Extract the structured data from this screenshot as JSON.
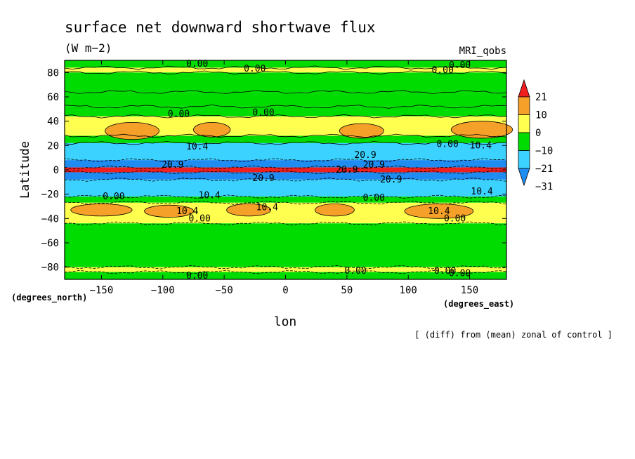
{
  "chart_data": {
    "type": "heatmap",
    "title": "surface net downward shortwave flux",
    "units": "(W m−2)",
    "model": "MRI_qobs",
    "xlabel": "lon",
    "ylabel": "Latitude",
    "x_unit_label": "(degrees_east)",
    "y_unit_label": "(degrees_north)",
    "note": "[ (diff) from (mean) zonal of control ]",
    "xlim": [
      -180,
      180
    ],
    "ylim": [
      -90,
      90
    ],
    "x_ticks": [
      -150,
      -100,
      -50,
      0,
      50,
      100,
      150
    ],
    "x_tick_labels": [
      "−150",
      "−100",
      "−50",
      "0",
      "50",
      "100",
      "150"
    ],
    "y_ticks": [
      80,
      60,
      40,
      20,
      0,
      -20,
      -40,
      -60,
      -80
    ],
    "y_tick_labels": [
      "80",
      "60",
      "40",
      "20",
      "0",
      "−20",
      "−40",
      "−60",
      "−80"
    ],
    "colorbar": {
      "colors": [
        "#1e8cf0",
        "#3cd2ff",
        "#00dc00",
        "#ffff50",
        "#f5a028",
        "#f01e1e"
      ],
      "labels": [
        "21",
        "10",
        "0",
        "−10",
        "−21",
        "−31"
      ]
    },
    "latitude_bands": [
      {
        "lat_from": 90,
        "lat_to": 84,
        "level": 2
      },
      {
        "lat_from": 84,
        "lat_to": 80,
        "level": 3
      },
      {
        "lat_from": 80,
        "lat_to": 64,
        "level": 2
      },
      {
        "lat_from": 64,
        "lat_to": 52,
        "level": 2
      },
      {
        "lat_from": 52,
        "lat_to": 44,
        "level": 2
      },
      {
        "lat_from": 44,
        "lat_to": 28,
        "level": 3
      },
      {
        "lat_from": 28,
        "lat_to": 22,
        "level": 2
      },
      {
        "lat_from": 22,
        "lat_to": 8,
        "level": 1
      },
      {
        "lat_from": 8,
        "lat_to": 2,
        "level": 0
      },
      {
        "lat_from": 2,
        "lat_to": -2,
        "level": 5
      },
      {
        "lat_from": -2,
        "lat_to": -8,
        "level": 0
      },
      {
        "lat_from": -8,
        "lat_to": -22,
        "level": 1
      },
      {
        "lat_from": -22,
        "lat_to": -27,
        "level": 2
      },
      {
        "lat_from": -27,
        "lat_to": -44,
        "level": 3
      },
      {
        "lat_from": -44,
        "lat_to": -80,
        "level": 2
      },
      {
        "lat_from": -80,
        "lat_to": -84,
        "level": 3
      },
      {
        "lat_from": -84,
        "lat_to": -90,
        "level": 2
      }
    ],
    "orange_patches": [
      {
        "lon": -125,
        "lat": 32,
        "dlon": 22,
        "dlat": 7
      },
      {
        "lon": -60,
        "lat": 33,
        "dlon": 15,
        "dlat": 6
      },
      {
        "lon": 62,
        "lat": 32,
        "dlon": 18,
        "dlat": 6
      },
      {
        "lon": 160,
        "lat": 33,
        "dlon": 25,
        "dlat": 7
      },
      {
        "lon": -150,
        "lat": -33,
        "dlon": 25,
        "dlat": 5
      },
      {
        "lon": -95,
        "lat": -34,
        "dlon": 20,
        "dlat": 5
      },
      {
        "lon": -30,
        "lat": -33,
        "dlon": 18,
        "dlat": 5
      },
      {
        "lon": 40,
        "lat": -33,
        "dlon": 16,
        "dlat": 5
      },
      {
        "lon": 125,
        "lat": -34,
        "dlon": 28,
        "dlat": 6
      }
    ],
    "contour_labels": [
      {
        "text": "0.00",
        "lon": -72,
        "lat": 87
      },
      {
        "text": "0.00",
        "lon": -25,
        "lat": 83
      },
      {
        "text": "0.00",
        "lon": 128,
        "lat": 82
      },
      {
        "text": "0.00",
        "lon": 142,
        "lat": 86
      },
      {
        "text": "0.00",
        "lon": -87,
        "lat": 46
      },
      {
        "text": "0.00",
        "lon": -18,
        "lat": 47
      },
      {
        "text": "0.00",
        "lon": 132,
        "lat": 21
      },
      {
        "text": "10.4",
        "lon": 159,
        "lat": 20
      },
      {
        "text": "10.4",
        "lon": -72,
        "lat": 19
      },
      {
        "text": "20.9",
        "lon": 65,
        "lat": 12
      },
      {
        "text": "20.9",
        "lon": -92,
        "lat": 4
      },
      {
        "text": "20.9",
        "lon": 50,
        "lat": 0
      },
      {
        "text": "20.9",
        "lon": 72,
        "lat": 4
      },
      {
        "text": "20.9",
        "lon": -18,
        "lat": -7
      },
      {
        "text": "20.9",
        "lon": 86,
        "lat": -8
      },
      {
        "text": "10.4",
        "lon": -62,
        "lat": -21
      },
      {
        "text": "10.4",
        "lon": 160,
        "lat": -18
      },
      {
        "text": "0.00",
        "lon": -140,
        "lat": -22
      },
      {
        "text": "0.00",
        "lon": 72,
        "lat": -23
      },
      {
        "text": "10.4",
        "lon": -80,
        "lat": -34
      },
      {
        "text": "10.4",
        "lon": -15,
        "lat": -31
      },
      {
        "text": "10.4",
        "lon": 125,
        "lat": -34
      },
      {
        "text": "0.00",
        "lon": -70,
        "lat": -40
      },
      {
        "text": "0.00",
        "lon": 138,
        "lat": -40
      },
      {
        "text": "0.00",
        "lon": 57,
        "lat": -83
      },
      {
        "text": "0.00",
        "lon": 130,
        "lat": -83
      },
      {
        "text": "0.00",
        "lon": 142,
        "lat": -85
      },
      {
        "text": "0.00",
        "lon": -72,
        "lat": -87
      }
    ]
  }
}
